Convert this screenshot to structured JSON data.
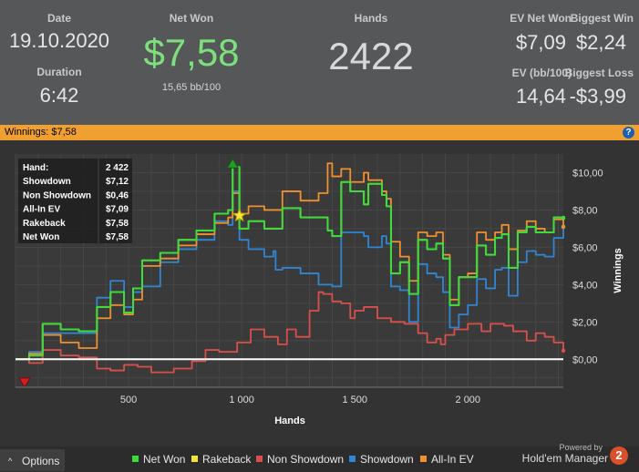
{
  "stats": {
    "date_label": "Date",
    "date_value": "19.10.2020",
    "duration_label": "Duration",
    "duration_value": "6:42",
    "net_won_label": "Net Won",
    "net_won_value": "$7,58",
    "bb100_value": "15,65 bb/100",
    "hands_label": "Hands",
    "hands_value": "2422",
    "ev_net_won_label": "EV Net Won",
    "ev_net_won_value": "$7,09",
    "biggest_win_label": "Biggest Win",
    "biggest_win_value": "$2,24",
    "ev_bb100_label": "EV (bb/100)",
    "ev_bb100_value": "14,64",
    "biggest_loss_label": "Biggest Loss",
    "biggest_loss_value": "-$3,99"
  },
  "banner": {
    "text": "Winnings: $7,58",
    "help_icon": "?"
  },
  "infobox": {
    "rows": [
      {
        "label": "Hand:",
        "value": "2 422"
      },
      {
        "label": "Showdown",
        "value": "$7,12"
      },
      {
        "label": "Non Showdown",
        "value": "$0,46"
      },
      {
        "label": "All-In EV",
        "value": "$7,09"
      },
      {
        "label": "Rakeback",
        "value": "$7,58"
      },
      {
        "label": "Net Won",
        "value": "$7,58"
      }
    ]
  },
  "footer": {
    "options_label": "Options",
    "options_icon": "^",
    "powered_by": "Powered by",
    "brand_name": "Hold'em Manager",
    "brand_badge": "2"
  },
  "colors": {
    "net_won": "#3ddc3d",
    "rakeback": "#f2e63a",
    "non_showdown": "#d9504a",
    "showdown": "#2f86d2",
    "all_in_ev": "#f0902e",
    "banner": "#f0a030",
    "stats_bg": "#555759",
    "net_won_value": "#7de07d"
  },
  "chart_data": {
    "type": "line",
    "xlabel": "Hands",
    "ylabel": "Winnings",
    "xlim": [
      0,
      2422
    ],
    "ylim": [
      -1.5,
      11
    ],
    "x_ticks": [
      500,
      1000,
      1500,
      2000
    ],
    "x_tick_labels": [
      "500",
      "1 000",
      "1 500",
      "2 000"
    ],
    "y_ticks": [
      0,
      2,
      4,
      6,
      8,
      10
    ],
    "y_tick_labels": [
      "$0,00",
      "$2,00",
      "$4,00",
      "$6,00",
      "$8,00",
      "$10,00"
    ],
    "grid": true,
    "legend": "bottom",
    "markers": {
      "max_hand": 960,
      "max_value": 10.5,
      "min_hand": 40,
      "min_value": -1.25,
      "star_hand": 990,
      "star_value": 7.7
    },
    "series": [
      {
        "name": "Net Won",
        "x": [
          0,
          60,
          120,
          200,
          280,
          360,
          420,
          480,
          520,
          560,
          640,
          720,
          800,
          880,
          940,
          960,
          990,
          1030,
          1100,
          1180,
          1260,
          1340,
          1380,
          1400,
          1440,
          1480,
          1540,
          1560,
          1620,
          1640,
          1660,
          1700,
          1740,
          1780,
          1820,
          1860,
          1890,
          1920,
          1960,
          2000,
          2040,
          2080,
          2120,
          2150,
          2180,
          2220,
          2260,
          2300,
          2340,
          2380,
          2422
        ],
        "values": [
          0,
          0.2,
          1.9,
          1.6,
          1.5,
          2.8,
          3.6,
          2.5,
          3.8,
          5.3,
          5.7,
          6.4,
          6.9,
          7.8,
          8.0,
          10.3,
          7.0,
          7.4,
          7.0,
          8.1,
          7.6,
          7.6,
          6.9,
          6.6,
          9.5,
          9.0,
          8.3,
          9.4,
          8.8,
          8.2,
          4.6,
          5.2,
          3.5,
          6.4,
          5.9,
          6.2,
          5.4,
          2.9,
          4.4,
          4.4,
          6.1,
          5.6,
          6.5,
          6.7,
          4.9,
          6.8,
          7.1,
          6.8,
          6.8,
          7.6,
          7.58
        ]
      },
      {
        "name": "Rakeback",
        "x": [
          0,
          60,
          120,
          200,
          280,
          360,
          420,
          480,
          520,
          560,
          640,
          720,
          800,
          880,
          940,
          960,
          990,
          1030,
          1100,
          1180,
          1260,
          1340,
          1380,
          1400,
          1440,
          1480,
          1540,
          1560,
          1620,
          1640,
          1660,
          1700,
          1740,
          1780,
          1820,
          1860,
          1890,
          1920,
          1960,
          2000,
          2040,
          2080,
          2120,
          2150,
          2180,
          2220,
          2260,
          2300,
          2340,
          2380,
          2422
        ],
        "values": [
          0,
          0.2,
          1.9,
          1.6,
          1.5,
          2.8,
          3.6,
          2.5,
          3.8,
          5.3,
          5.7,
          6.4,
          6.9,
          7.8,
          8.0,
          10.3,
          7.0,
          7.4,
          7.0,
          8.1,
          7.6,
          7.6,
          6.9,
          6.6,
          9.5,
          9.0,
          8.3,
          9.4,
          8.8,
          8.2,
          4.6,
          5.2,
          3.5,
          6.4,
          5.9,
          6.2,
          5.4,
          2.9,
          4.4,
          4.4,
          6.1,
          5.6,
          6.5,
          6.7,
          4.9,
          6.8,
          7.1,
          6.8,
          6.8,
          7.6,
          7.58
        ]
      },
      {
        "name": "Non Showdown",
        "x": [
          0,
          60,
          120,
          200,
          280,
          360,
          420,
          480,
          540,
          600,
          700,
          780,
          840,
          900,
          980,
          1040,
          1100,
          1160,
          1200,
          1240,
          1300,
          1340,
          1360,
          1400,
          1440,
          1480,
          1500,
          1540,
          1600,
          1660,
          1720,
          1780,
          1820,
          1860,
          1880,
          1900,
          1940,
          2000,
          2060,
          2100,
          2160,
          2200,
          2260,
          2300,
          2340,
          2380,
          2422
        ],
        "values": [
          0,
          -0.2,
          0.5,
          0.2,
          0.1,
          -0.5,
          -0.6,
          -0.3,
          -0.4,
          -0.7,
          -0.5,
          -0.1,
          0.5,
          0.4,
          0.9,
          1.6,
          1.2,
          0.8,
          1.6,
          1.2,
          2.6,
          3.6,
          3.5,
          3.1,
          3.0,
          2.2,
          2.6,
          2.8,
          2.2,
          2.0,
          1.9,
          1.4,
          0.9,
          1.1,
          0.8,
          1.3,
          1.6,
          1.9,
          1.5,
          1.9,
          1.8,
          1.5,
          1.0,
          1.4,
          1.2,
          0.9,
          0.46
        ]
      },
      {
        "name": "Showdown",
        "x": [
          0,
          60,
          120,
          200,
          280,
          360,
          420,
          480,
          520,
          560,
          640,
          720,
          800,
          880,
          940,
          960,
          990,
          1030,
          1100,
          1140,
          1150,
          1180,
          1260,
          1340,
          1400,
          1440,
          1480,
          1540,
          1560,
          1620,
          1640,
          1660,
          1700,
          1740,
          1780,
          1820,
          1860,
          1890,
          1920,
          1960,
          2000,
          2040,
          2080,
          2120,
          2150,
          2180,
          2220,
          2260,
          2300,
          2340,
          2380,
          2422
        ],
        "values": [
          0,
          0.4,
          1.4,
          1.4,
          1.4,
          3.3,
          4.2,
          2.8,
          3.6,
          3.9,
          5.2,
          5.9,
          6.4,
          7.4,
          7.2,
          9.0,
          6.4,
          5.9,
          5.5,
          5.8,
          4.8,
          4.9,
          4.6,
          4.0,
          3.9,
          6.8,
          6.8,
          6.6,
          6.0,
          6.6,
          6.2,
          3.9,
          3.7,
          2.0,
          5.1,
          4.6,
          4.4,
          3.6,
          1.7,
          2.4,
          2.9,
          4.3,
          3.8,
          4.8,
          4.9,
          3.4,
          5.2,
          5.8,
          5.6,
          5.5,
          6.5,
          7.12
        ]
      },
      {
        "name": "All-In EV",
        "x": [
          0,
          60,
          120,
          200,
          280,
          360,
          420,
          480,
          520,
          560,
          640,
          720,
          800,
          880,
          940,
          960,
          990,
          1030,
          1100,
          1180,
          1260,
          1340,
          1380,
          1400,
          1440,
          1480,
          1540,
          1560,
          1620,
          1640,
          1660,
          1700,
          1740,
          1780,
          1820,
          1860,
          1890,
          1920,
          1960,
          2000,
          2040,
          2080,
          2120,
          2150,
          2180,
          2220,
          2260,
          2300,
          2340,
          2380,
          2422
        ],
        "values": [
          0,
          0.3,
          1.3,
          0.9,
          0.6,
          2.2,
          2.9,
          2.4,
          3.2,
          5.0,
          5.4,
          6.1,
          6.7,
          7.3,
          7.6,
          8.9,
          7.8,
          8.2,
          8.0,
          9.0,
          8.5,
          8.9,
          10.5,
          9.8,
          10.2,
          9.5,
          10.0,
          9.6,
          9.0,
          8.6,
          6.3,
          5.5,
          4.2,
          6.8,
          6.6,
          6.8,
          5.6,
          3.2,
          4.4,
          4.6,
          6.8,
          6.4,
          6.8,
          7.2,
          5.9,
          6.9,
          7.4,
          7.0,
          6.8,
          7.5,
          7.09
        ]
      }
    ]
  }
}
